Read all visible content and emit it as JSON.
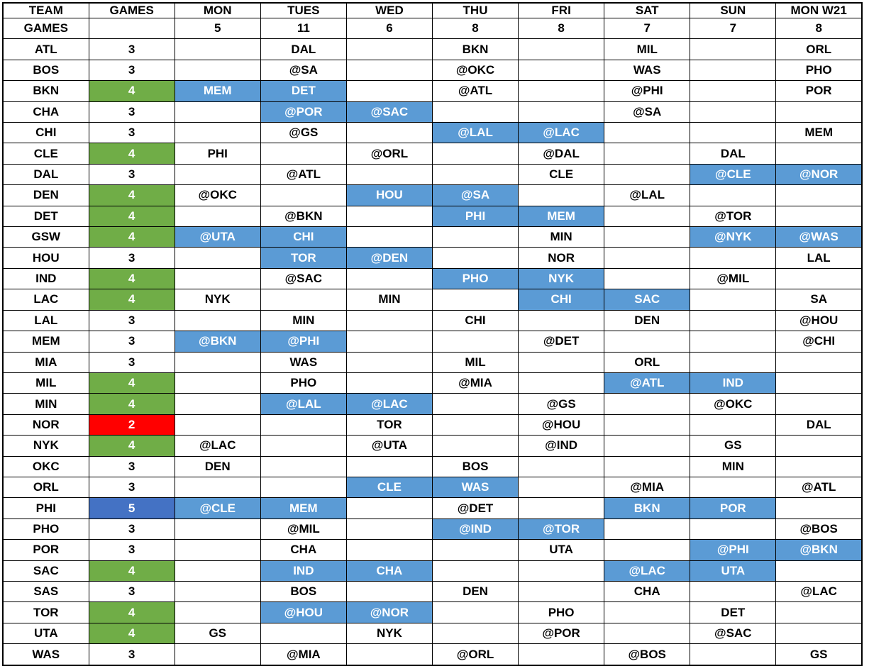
{
  "table": {
    "columns": [
      "TEAM",
      "GAMES",
      "MON",
      "TUES",
      "WED",
      "THU",
      "FRI",
      "SAT",
      "SUN",
      "MON W21"
    ],
    "totals_row": {
      "label": "GAMES",
      "values": [
        "",
        "5",
        "11",
        "6",
        "8",
        "8",
        "7",
        "7",
        "8"
      ]
    },
    "colors": {
      "green": "#70AD47",
      "blue": "#5B9BD5",
      "dark_blue": "#4472C4",
      "red": "#FF0000"
    },
    "rows": [
      {
        "team": "ATL",
        "games": "3",
        "games_color": "",
        "days": [
          "",
          "DAL",
          "",
          "BKN",
          "",
          "MIL",
          "",
          "ORL"
        ],
        "hl": []
      },
      {
        "team": "BOS",
        "games": "3",
        "games_color": "",
        "days": [
          "",
          "@SA",
          "",
          "@OKC",
          "",
          "WAS",
          "",
          "PHO"
        ],
        "hl": []
      },
      {
        "team": "BKN",
        "games": "4",
        "games_color": "green",
        "days": [
          "MEM",
          "DET",
          "",
          "@ATL",
          "",
          "@PHI",
          "",
          "POR"
        ],
        "hl": [
          0,
          1
        ]
      },
      {
        "team": "CHA",
        "games": "3",
        "games_color": "",
        "days": [
          "",
          "@POR",
          "@SAC",
          "",
          "",
          "@SA",
          "",
          ""
        ],
        "hl": [
          1,
          2
        ]
      },
      {
        "team": "CHI",
        "games": "3",
        "games_color": "",
        "days": [
          "",
          "@GS",
          "",
          "@LAL",
          "@LAC",
          "",
          "",
          "MEM"
        ],
        "hl": [
          3,
          4
        ]
      },
      {
        "team": "CLE",
        "games": "4",
        "games_color": "green",
        "days": [
          "PHI",
          "",
          "@ORL",
          "",
          "@DAL",
          "",
          "DAL",
          ""
        ],
        "hl": []
      },
      {
        "team": "DAL",
        "games": "3",
        "games_color": "",
        "days": [
          "",
          "@ATL",
          "",
          "",
          "CLE",
          "",
          "@CLE",
          "@NOR"
        ],
        "hl": [
          6,
          7
        ]
      },
      {
        "team": "DEN",
        "games": "4",
        "games_color": "green",
        "days": [
          "@OKC",
          "",
          "HOU",
          "@SA",
          "",
          "@LAL",
          "",
          ""
        ],
        "hl": [
          2,
          3
        ]
      },
      {
        "team": "DET",
        "games": "4",
        "games_color": "green",
        "days": [
          "",
          "@BKN",
          "",
          "PHI",
          "MEM",
          "",
          "@TOR",
          ""
        ],
        "hl": [
          3,
          4
        ]
      },
      {
        "team": "GSW",
        "games": "4",
        "games_color": "green",
        "days": [
          "@UTA",
          "CHI",
          "",
          "",
          "MIN",
          "",
          "@NYK",
          "@WAS"
        ],
        "hl": [
          0,
          1,
          6,
          7
        ]
      },
      {
        "team": "HOU",
        "games": "3",
        "games_color": "",
        "days": [
          "",
          "TOR",
          "@DEN",
          "",
          "NOR",
          "",
          "",
          "LAL"
        ],
        "hl": [
          1,
          2
        ]
      },
      {
        "team": "IND",
        "games": "4",
        "games_color": "green",
        "days": [
          "",
          "@SAC",
          "",
          "PHO",
          "NYK",
          "",
          "@MIL",
          ""
        ],
        "hl": [
          3,
          4
        ]
      },
      {
        "team": "LAC",
        "games": "4",
        "games_color": "green",
        "days": [
          "NYK",
          "",
          "MIN",
          "",
          "CHI",
          "SAC",
          "",
          "SA"
        ],
        "hl": [
          4,
          5
        ]
      },
      {
        "team": "LAL",
        "games": "3",
        "games_color": "",
        "days": [
          "",
          "MIN",
          "",
          "CHI",
          "",
          "DEN",
          "",
          "@HOU"
        ],
        "hl": []
      },
      {
        "team": "MEM",
        "games": "3",
        "games_color": "",
        "days": [
          "@BKN",
          "@PHI",
          "",
          "",
          "@DET",
          "",
          "",
          "@CHI"
        ],
        "hl": [
          0,
          1
        ]
      },
      {
        "team": "MIA",
        "games": "3",
        "games_color": "",
        "days": [
          "",
          "WAS",
          "",
          "MIL",
          "",
          "ORL",
          "",
          ""
        ],
        "hl": []
      },
      {
        "team": "MIL",
        "games": "4",
        "games_color": "green",
        "days": [
          "",
          "PHO",
          "",
          "@MIA",
          "",
          "@ATL",
          "IND",
          ""
        ],
        "hl": [
          5,
          6
        ]
      },
      {
        "team": "MIN",
        "games": "4",
        "games_color": "green",
        "days": [
          "",
          "@LAL",
          "@LAC",
          "",
          "@GS",
          "",
          "@OKC",
          ""
        ],
        "hl": [
          1,
          2
        ]
      },
      {
        "team": "NOR",
        "games": "2",
        "games_color": "red",
        "days": [
          "",
          "",
          "TOR",
          "",
          "@HOU",
          "",
          "",
          "DAL"
        ],
        "hl": []
      },
      {
        "team": "NYK",
        "games": "4",
        "games_color": "green",
        "days": [
          "@LAC",
          "",
          "@UTA",
          "",
          "@IND",
          "",
          "GS",
          ""
        ],
        "hl": []
      },
      {
        "team": "OKC",
        "games": "3",
        "games_color": "",
        "days": [
          "DEN",
          "",
          "",
          "BOS",
          "",
          "",
          "MIN",
          ""
        ],
        "hl": []
      },
      {
        "team": "ORL",
        "games": "3",
        "games_color": "",
        "days": [
          "",
          "",
          "CLE",
          "WAS",
          "",
          "@MIA",
          "",
          "@ATL"
        ],
        "hl": [
          2,
          3
        ]
      },
      {
        "team": "PHI",
        "games": "5",
        "games_color": "dark_blue",
        "days": [
          "@CLE",
          "MEM",
          "",
          "@DET",
          "",
          "BKN",
          "POR",
          ""
        ],
        "hl": [
          0,
          1,
          5,
          6
        ]
      },
      {
        "team": "PHO",
        "games": "3",
        "games_color": "",
        "days": [
          "",
          "@MIL",
          "",
          "@IND",
          "@TOR",
          "",
          "",
          "@BOS"
        ],
        "hl": [
          3,
          4
        ]
      },
      {
        "team": "POR",
        "games": "3",
        "games_color": "",
        "days": [
          "",
          "CHA",
          "",
          "",
          "UTA",
          "",
          "@PHI",
          "@BKN"
        ],
        "hl": [
          6,
          7
        ]
      },
      {
        "team": "SAC",
        "games": "4",
        "games_color": "green",
        "days": [
          "",
          "IND",
          "CHA",
          "",
          "",
          "@LAC",
          "UTA",
          ""
        ],
        "hl": [
          1,
          2,
          5,
          6
        ]
      },
      {
        "team": "SAS",
        "games": "3",
        "games_color": "",
        "days": [
          "",
          "BOS",
          "",
          "DEN",
          "",
          "CHA",
          "",
          "@LAC"
        ],
        "hl": []
      },
      {
        "team": "TOR",
        "games": "4",
        "games_color": "green",
        "days": [
          "",
          "@HOU",
          "@NOR",
          "",
          "PHO",
          "",
          "DET",
          ""
        ],
        "hl": [
          1,
          2
        ]
      },
      {
        "team": "UTA",
        "games": "4",
        "games_color": "green",
        "days": [
          "GS",
          "",
          "NYK",
          "",
          "@POR",
          "",
          "@SAC",
          ""
        ],
        "hl": []
      },
      {
        "team": "WAS",
        "games": "3",
        "games_color": "",
        "days": [
          "",
          "@MIA",
          "",
          "@ORL",
          "",
          "@BOS",
          "",
          "GS"
        ],
        "hl": []
      }
    ]
  }
}
